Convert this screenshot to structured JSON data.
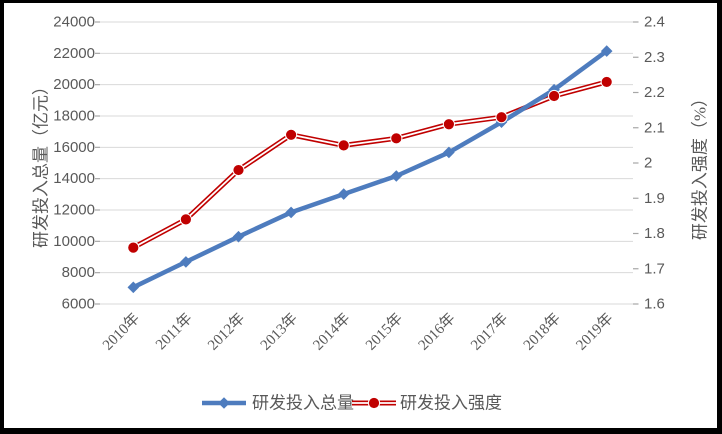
{
  "chart_data": {
    "type": "line",
    "title": "",
    "categories": [
      "2010年",
      "2011年",
      "2012年",
      "2013年",
      "2014年",
      "2015年",
      "2016年",
      "2017年",
      "2018年",
      "2019年"
    ],
    "series": [
      {
        "name": "研发投入总量",
        "axis": "left",
        "marker": "diamond",
        "line_style": "solid",
        "color": "#4E7CBE",
        "values": [
          7063,
          8687,
          10298,
          11847,
          13016,
          14170,
          15677,
          17606,
          19678,
          22144
        ]
      },
      {
        "name": "研发投入强度",
        "axis": "right",
        "marker": "circle",
        "line_style": "double",
        "color": "#C00000",
        "values": [
          1.76,
          1.84,
          1.98,
          2.08,
          2.05,
          2.07,
          2.11,
          2.13,
          2.19,
          2.23
        ]
      }
    ],
    "left_axis": {
      "label": "研发投入总量（亿元）",
      "min": 6000,
      "max": 24000,
      "step": 2000,
      "ticks": [
        "24000",
        "22000",
        "20000",
        "18000",
        "16000",
        "14000",
        "12000",
        "10000",
        "8000",
        "6000"
      ]
    },
    "right_axis": {
      "label": "研发投入强度（%）",
      "min": 1.6,
      "max": 2.4,
      "step": 0.1,
      "ticks": [
        "2.4",
        "2.3",
        "2.2",
        "2.1",
        "2",
        "1.9",
        "1.8",
        "1.7",
        "1.6"
      ]
    },
    "legend": {
      "position": "bottom",
      "items": [
        "研发投入总量",
        "研发投入强度"
      ]
    },
    "grid": true,
    "colors": {
      "grid": "#D9D9D9",
      "tick_mark": "#A6A6A6",
      "tick_text": "#595959",
      "axis_title_text": "#595959",
      "legend_text": "#595959",
      "background": "#FFFFFF",
      "frame": "#000000"
    }
  }
}
